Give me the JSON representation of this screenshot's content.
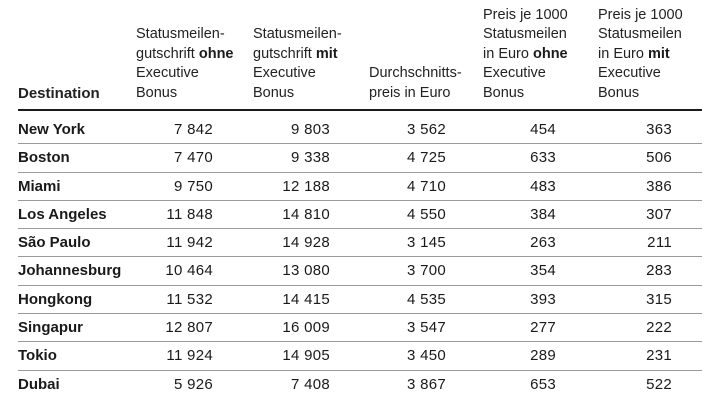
{
  "table": {
    "columns": [
      {
        "id": "destination",
        "lines": [
          "Destination"
        ]
      },
      {
        "id": "without_bonus",
        "lines": [
          "Statusmeilen-",
          "gutschrift |ohne|",
          "Executive",
          "Bonus"
        ]
      },
      {
        "id": "with_bonus",
        "lines": [
          "Statusmeilen-",
          "gutschrift |mit|",
          "Executive",
          "Bonus"
        ]
      },
      {
        "id": "avg_price",
        "lines": [
          "Durchschnitts-",
          "preis in Euro"
        ]
      },
      {
        "id": "price_per_1000_without",
        "lines": [
          "Preis je 1000",
          "Statusmeilen",
          "in Euro |ohne|",
          "Executive",
          "Bonus"
        ]
      },
      {
        "id": "price_per_1000_with",
        "lines": [
          "Preis je 1000",
          "Statusmeilen",
          "in Euro |mit|",
          "Executive",
          "Bonus"
        ]
      }
    ],
    "rows": [
      {
        "destination": "New York",
        "values": [
          "7 842",
          "9 803",
          "3 562",
          "454",
          "363"
        ]
      },
      {
        "destination": "Boston",
        "values": [
          "7 470",
          "9 338",
          "4 725",
          "633",
          "506"
        ]
      },
      {
        "destination": "Miami",
        "values": [
          "9 750",
          "12 188",
          "4 710",
          "483",
          "386"
        ]
      },
      {
        "destination": "Los Angeles",
        "values": [
          "11 848",
          "14 810",
          "4 550",
          "384",
          "307"
        ]
      },
      {
        "destination": "São Paulo",
        "values": [
          "11 942",
          "14 928",
          "3 145",
          "263",
          "211"
        ]
      },
      {
        "destination": "Johannesburg",
        "values": [
          "10 464",
          "13 080",
          "3 700",
          "354",
          "283"
        ]
      },
      {
        "destination": "Hongkong",
        "values": [
          "11 532",
          "14 415",
          "4 535",
          "393",
          "315"
        ]
      },
      {
        "destination": "Singapur",
        "values": [
          "12 807",
          "16 009",
          "3 547",
          "277",
          "222"
        ]
      },
      {
        "destination": "Tokio",
        "values": [
          "11 924",
          "14 905",
          "3 450",
          "289",
          "231"
        ]
      },
      {
        "destination": "Dubai",
        "values": [
          "5 926",
          "7 408",
          "3 867",
          "653",
          "522"
        ]
      }
    ]
  }
}
